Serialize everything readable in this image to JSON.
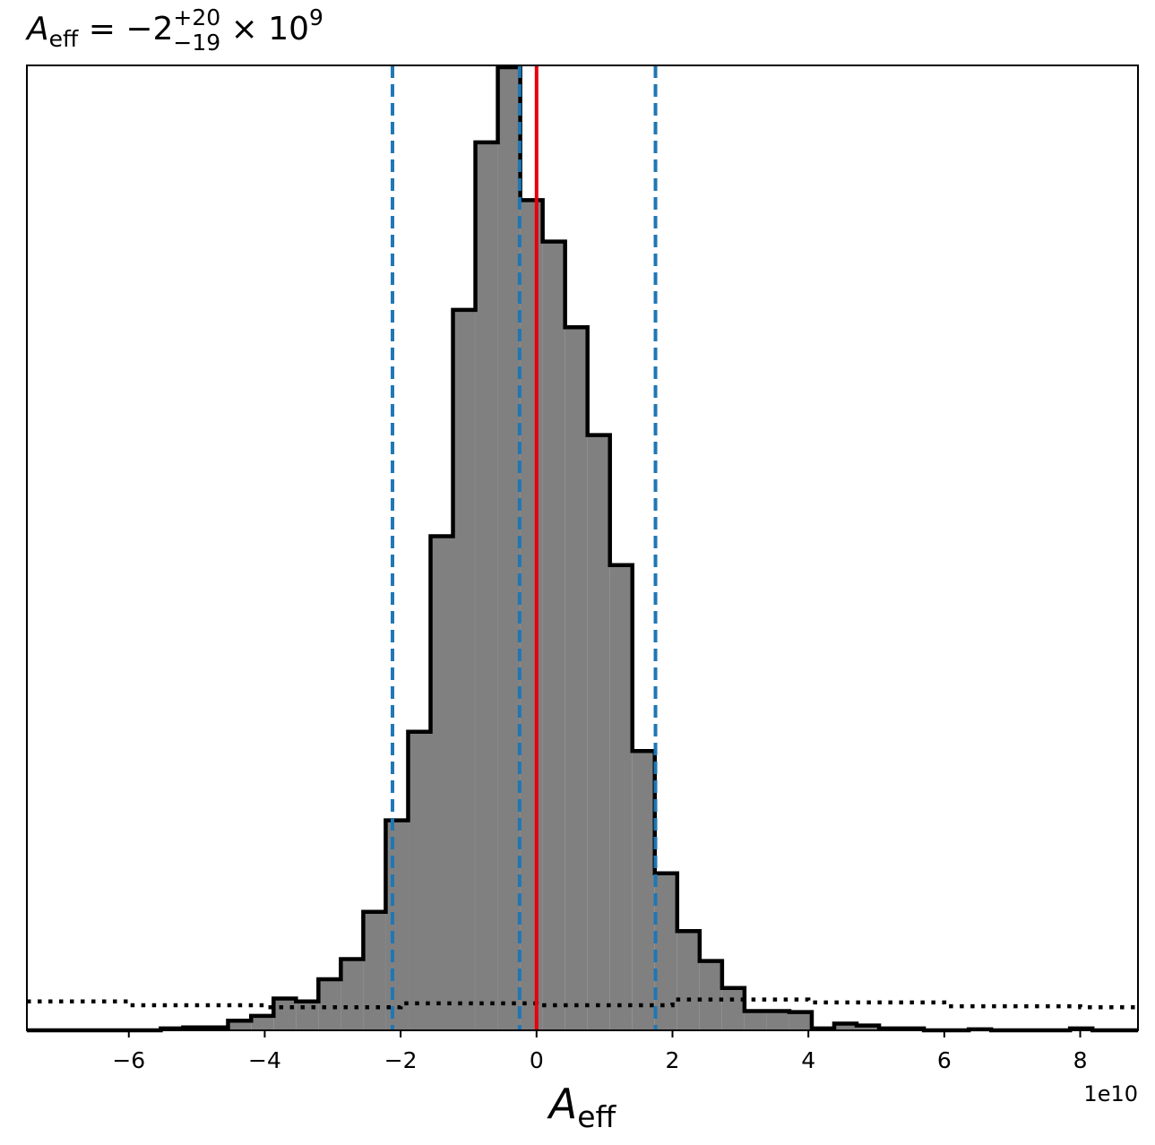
{
  "chart_data": {
    "type": "bar",
    "title": {
      "symbol": "A",
      "symbol_sub": "eff",
      "text": " = −2",
      "sup": "+20",
      "sub": "−19",
      "tail": " × 10",
      "tail_sup": "9"
    },
    "xlabel": {
      "symbol": "A",
      "sub": "eff"
    },
    "offset_label": "1e10",
    "xlim": [
      -7.5,
      8.85
    ],
    "ylim": [
      0,
      100
    ],
    "xticks": [
      {
        "value": -6,
        "label": "−6"
      },
      {
        "value": -4,
        "label": "−4"
      },
      {
        "value": -2,
        "label": "−2"
      },
      {
        "value": 0,
        "label": "0"
      },
      {
        "value": 2,
        "label": "2"
      },
      {
        "value": 4,
        "label": "4"
      },
      {
        "value": 6,
        "label": "6"
      },
      {
        "value": 8,
        "label": "8"
      }
    ],
    "histogram": {
      "bins": [
        {
          "x0": -7.5,
          "x1": -5.53,
          "value": 0.0
        },
        {
          "x0": -5.53,
          "x1": -5.2,
          "value": 0.2
        },
        {
          "x0": -5.2,
          "x1": -4.87,
          "value": 0.3
        },
        {
          "x0": -4.87,
          "x1": -4.54,
          "value": 0.3
        },
        {
          "x0": -4.54,
          "x1": -4.2,
          "value": 1.0
        },
        {
          "x0": -4.2,
          "x1": -3.87,
          "value": 1.5
        },
        {
          "x0": -3.87,
          "x1": -3.54,
          "value": 3.3
        },
        {
          "x0": -3.54,
          "x1": -3.21,
          "value": 3.0
        },
        {
          "x0": -3.21,
          "x1": -2.88,
          "value": 5.3
        },
        {
          "x0": -2.88,
          "x1": -2.55,
          "value": 7.4
        },
        {
          "x0": -2.55,
          "x1": -2.22,
          "value": 12.3
        },
        {
          "x0": -2.22,
          "x1": -1.89,
          "value": 21.8
        },
        {
          "x0": -1.89,
          "x1": -1.56,
          "value": 31.0
        },
        {
          "x0": -1.56,
          "x1": -1.23,
          "value": 51.3
        },
        {
          "x0": -1.23,
          "x1": -0.9,
          "value": 74.8
        },
        {
          "x0": -0.9,
          "x1": -0.57,
          "value": 92.2
        },
        {
          "x0": -0.57,
          "x1": -0.24,
          "value": 100.0
        },
        {
          "x0": -0.24,
          "x1": 0.09,
          "value": 86.2
        },
        {
          "x0": 0.09,
          "x1": 0.42,
          "value": 81.9
        },
        {
          "x0": 0.42,
          "x1": 0.75,
          "value": 73.0
        },
        {
          "x0": 0.75,
          "x1": 1.08,
          "value": 61.8
        },
        {
          "x0": 1.08,
          "x1": 1.41,
          "value": 48.3
        },
        {
          "x0": 1.41,
          "x1": 1.74,
          "value": 29.0
        },
        {
          "x0": 1.74,
          "x1": 2.07,
          "value": 16.3
        },
        {
          "x0": 2.07,
          "x1": 2.4,
          "value": 10.3
        },
        {
          "x0": 2.4,
          "x1": 2.73,
          "value": 7.2
        },
        {
          "x0": 2.73,
          "x1": 3.06,
          "value": 4.4
        },
        {
          "x0": 3.06,
          "x1": 3.39,
          "value": 2.0
        },
        {
          "x0": 3.39,
          "x1": 3.72,
          "value": 2.0
        },
        {
          "x0": 3.72,
          "x1": 4.05,
          "value": 1.9
        },
        {
          "x0": 4.05,
          "x1": 4.38,
          "value": 0.2
        },
        {
          "x0": 4.38,
          "x1": 4.71,
          "value": 0.7
        },
        {
          "x0": 4.71,
          "x1": 5.04,
          "value": 0.5
        },
        {
          "x0": 5.04,
          "x1": 5.37,
          "value": 0.2
        },
        {
          "x0": 5.37,
          "x1": 5.7,
          "value": 0.2
        },
        {
          "x0": 5.7,
          "x1": 6.03,
          "value": 0.0
        },
        {
          "x0": 6.03,
          "x1": 6.36,
          "value": 0.0
        },
        {
          "x0": 6.36,
          "x1": 6.69,
          "value": 0.1
        },
        {
          "x0": 6.69,
          "x1": 7.85,
          "value": 0.0
        },
        {
          "x0": 7.85,
          "x1": 8.18,
          "value": 0.2
        },
        {
          "x0": 8.18,
          "x1": 8.85,
          "value": 0.0
        }
      ],
      "fill": "#808080",
      "edge": "#000000"
    },
    "prior": {
      "style": "dotted",
      "color": "#000000",
      "x": [
        -7.5,
        -6.0,
        -6.0,
        -4.0,
        -4.0,
        -2.0,
        -2.0,
        0.0,
        0.0,
        2.0,
        2.0,
        4.0,
        4.0,
        6.0,
        6.0,
        8.0,
        8.0,
        8.85
      ],
      "y": [
        3.0,
        3.0,
        2.6,
        2.6,
        2.4,
        2.4,
        2.8,
        2.8,
        2.6,
        2.6,
        3.2,
        3.2,
        2.9,
        2.9,
        2.5,
        2.5,
        2.4,
        2.4
      ]
    },
    "vlines": [
      {
        "x": -2.12,
        "color": "#1f77b4",
        "style": "dashed"
      },
      {
        "x": -0.25,
        "color": "#1f77b4",
        "style": "dashed"
      },
      {
        "x": 1.75,
        "color": "#1f77b4",
        "style": "dashed"
      },
      {
        "x": 0.0,
        "color": "#e8000b",
        "style": "solid"
      }
    ],
    "grid": false
  }
}
